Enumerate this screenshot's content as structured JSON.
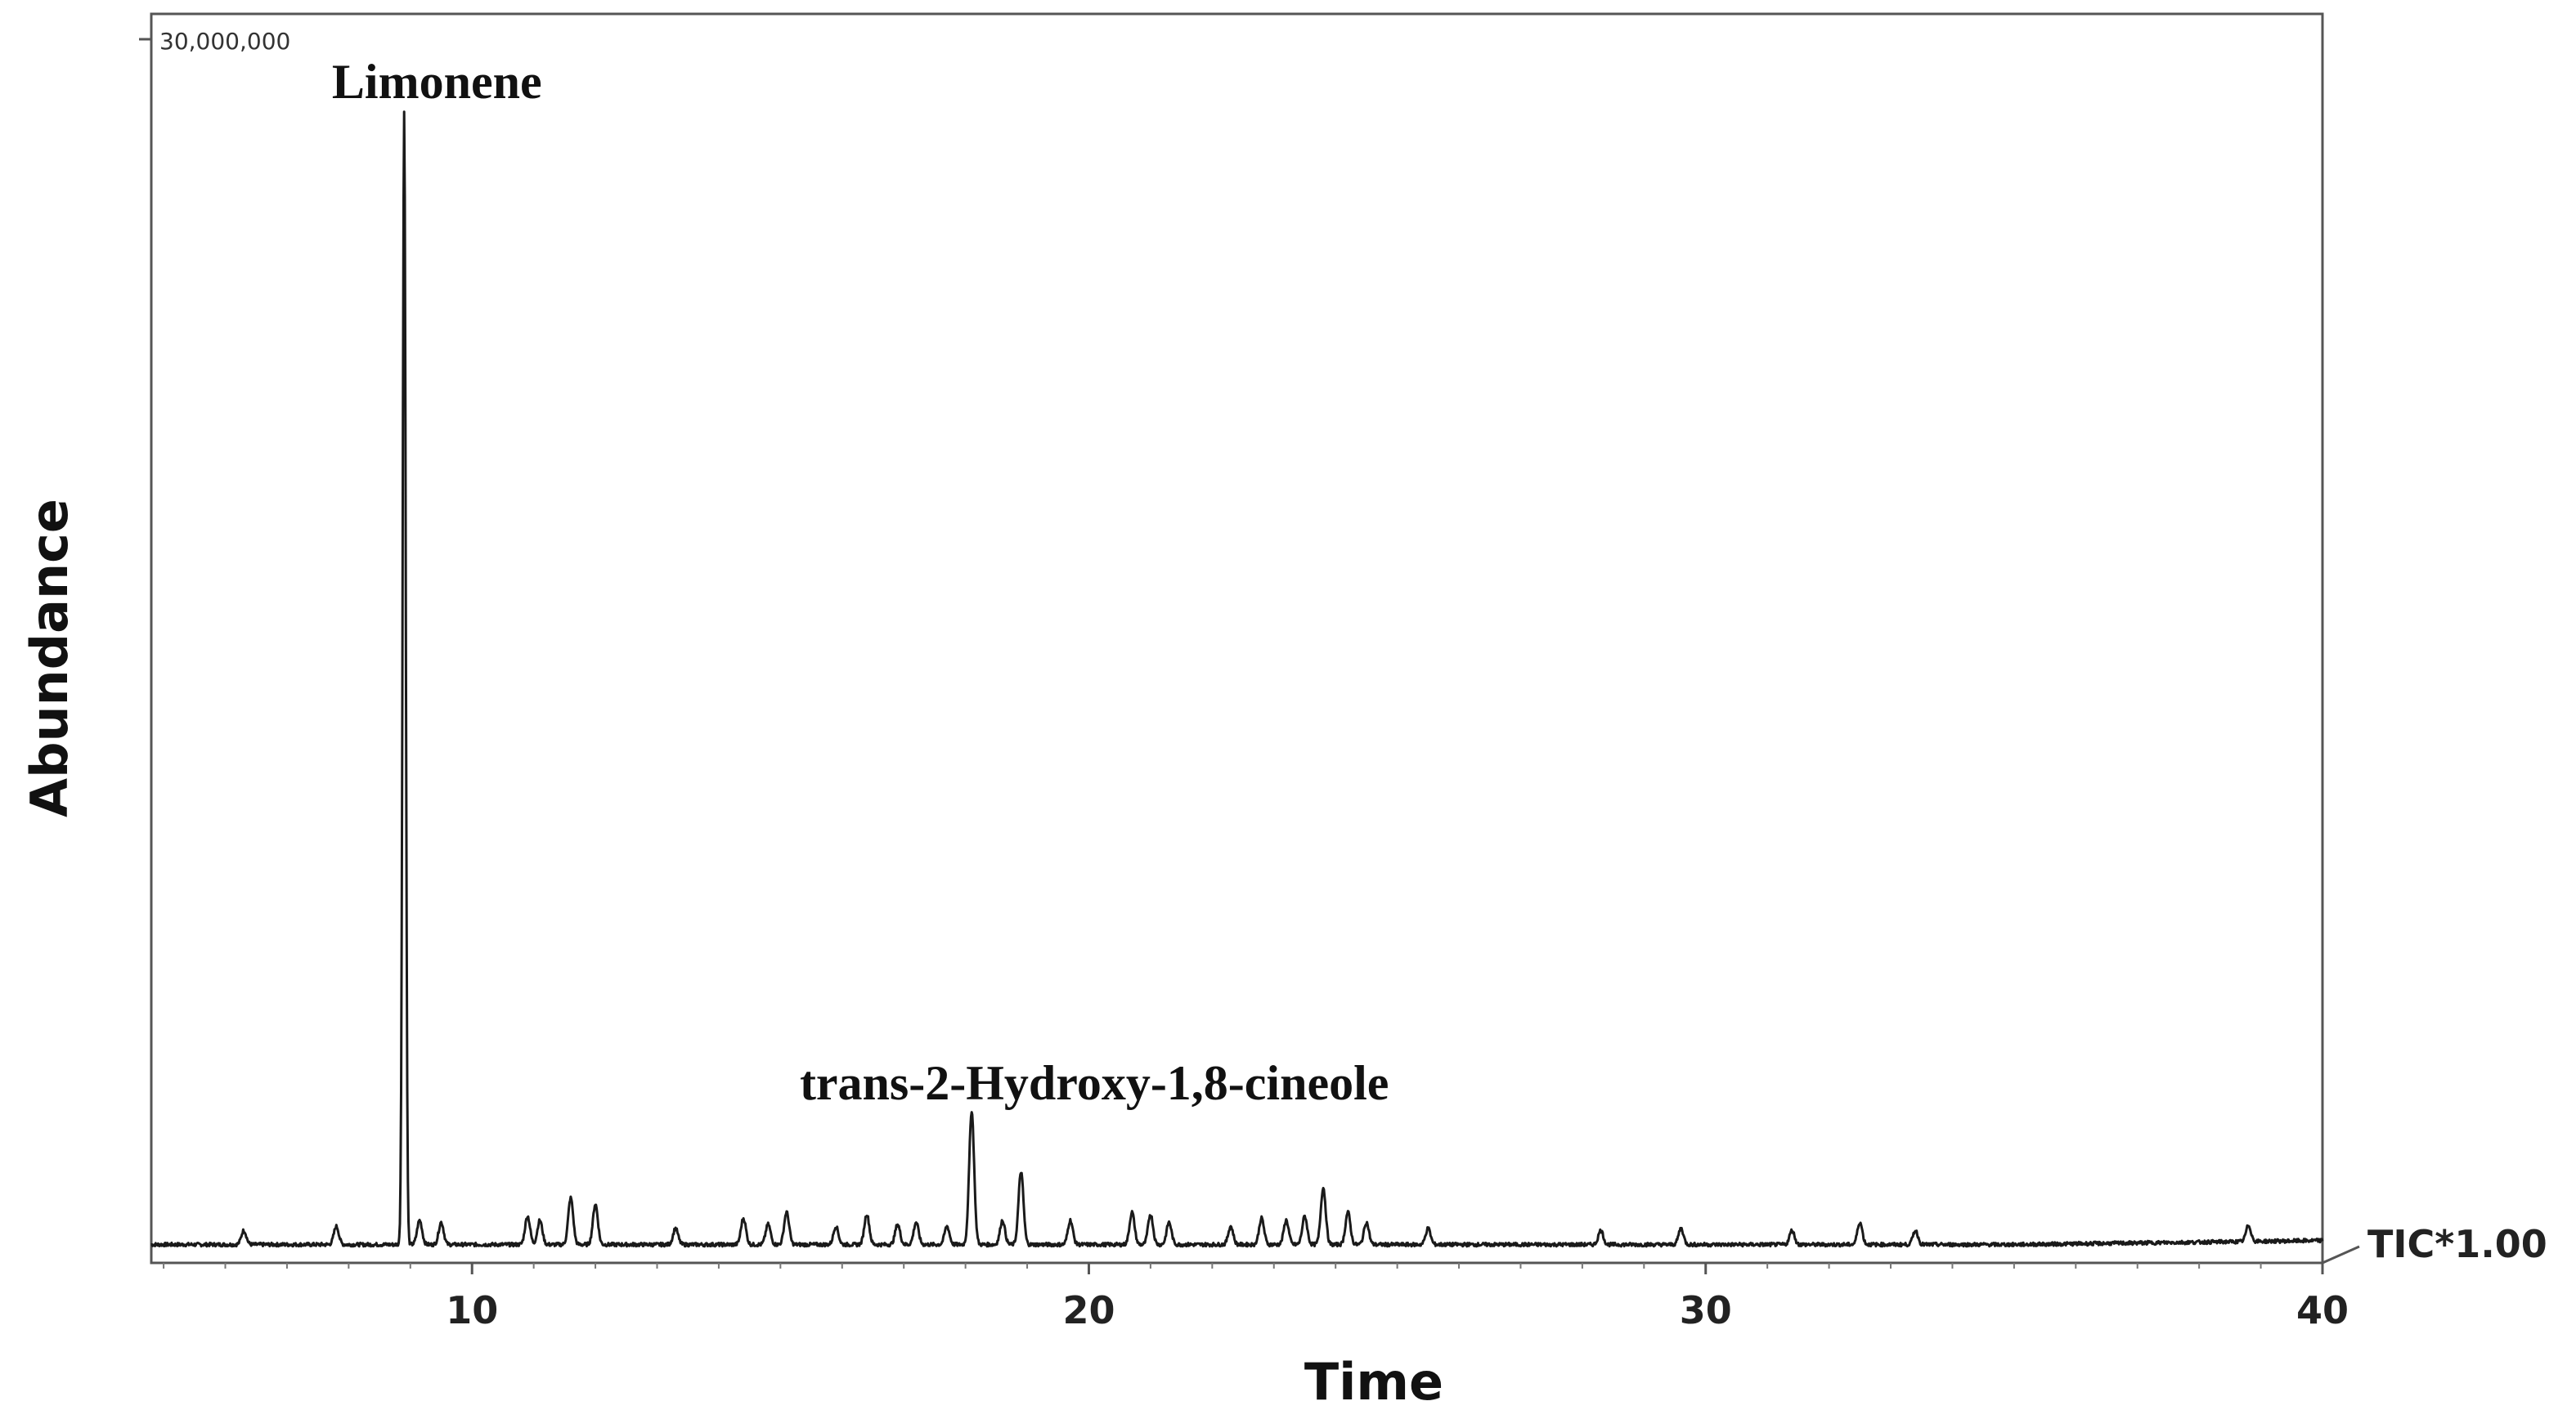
{
  "chart_data": {
    "type": "line",
    "xlabel": "Time",
    "ylabel": "Abundance",
    "xlim": [
      4.8,
      40
    ],
    "ylim": [
      0,
      30000000
    ],
    "x_ticks": [
      10,
      20,
      30,
      40
    ],
    "y_max_label": "30,000,000",
    "trace_label": "TIC*1.00",
    "grid": false,
    "series_color": "#1a1a1a",
    "annotations": [
      {
        "text": "Limonene",
        "x": 8.9
      },
      {
        "text": "trans-2-Hydroxy-1,8-cineole",
        "x": 18.1
      }
    ],
    "peaks": [
      {
        "x": 6.3,
        "y": 350000
      },
      {
        "x": 7.8,
        "y": 450000
      },
      {
        "x": 8.9,
        "y": 28000000
      },
      {
        "x": 9.15,
        "y": 600000
      },
      {
        "x": 9.5,
        "y": 550000
      },
      {
        "x": 10.9,
        "y": 700000
      },
      {
        "x": 11.1,
        "y": 600000
      },
      {
        "x": 11.6,
        "y": 1150000
      },
      {
        "x": 12.0,
        "y": 1000000
      },
      {
        "x": 13.3,
        "y": 400000
      },
      {
        "x": 14.4,
        "y": 650000
      },
      {
        "x": 14.8,
        "y": 500000
      },
      {
        "x": 15.1,
        "y": 800000
      },
      {
        "x": 15.9,
        "y": 450000
      },
      {
        "x": 16.4,
        "y": 750000
      },
      {
        "x": 16.9,
        "y": 500000
      },
      {
        "x": 17.2,
        "y": 550000
      },
      {
        "x": 17.7,
        "y": 450000
      },
      {
        "x": 18.1,
        "y": 3300000
      },
      {
        "x": 18.6,
        "y": 600000
      },
      {
        "x": 18.9,
        "y": 1800000
      },
      {
        "x": 19.7,
        "y": 600000
      },
      {
        "x": 20.7,
        "y": 800000
      },
      {
        "x": 21.0,
        "y": 750000
      },
      {
        "x": 21.3,
        "y": 550000
      },
      {
        "x": 22.3,
        "y": 450000
      },
      {
        "x": 22.8,
        "y": 650000
      },
      {
        "x": 23.2,
        "y": 600000
      },
      {
        "x": 23.5,
        "y": 700000
      },
      {
        "x": 23.8,
        "y": 1400000
      },
      {
        "x": 24.2,
        "y": 800000
      },
      {
        "x": 24.5,
        "y": 550000
      },
      {
        "x": 25.5,
        "y": 400000
      },
      {
        "x": 28.3,
        "y": 350000
      },
      {
        "x": 29.6,
        "y": 400000
      },
      {
        "x": 31.4,
        "y": 350000
      },
      {
        "x": 32.5,
        "y": 550000
      },
      {
        "x": 33.4,
        "y": 350000
      },
      {
        "x": 38.8,
        "y": 400000
      }
    ]
  }
}
